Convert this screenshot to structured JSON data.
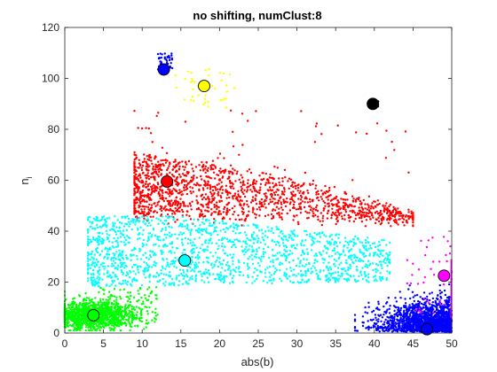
{
  "chart_data": {
    "type": "scatter",
    "title": "no shifting, numClust:8",
    "xlabel": "abs(b)",
    "ylabel": "n",
    "ylabel_subscript": "i",
    "xlim": [
      0,
      50
    ],
    "ylim": [
      0,
      120
    ],
    "xticks": [
      "0",
      "5",
      "10",
      "15",
      "20",
      "25",
      "30",
      "35",
      "40",
      "45",
      "50"
    ],
    "yticks": [
      "0",
      "20",
      "40",
      "60",
      "80",
      "100",
      "120"
    ],
    "grid": false,
    "legend": "none",
    "clusters": [
      {
        "color": "#ff0000",
        "x_range": [
          9,
          45
        ],
        "y_range": [
          42,
          88
        ],
        "centroid": [
          13.2,
          59.5
        ],
        "density": "dense"
      },
      {
        "color": "#00ffff",
        "x_range": [
          3,
          42
        ],
        "y_range": [
          15,
          47
        ],
        "centroid": [
          15.5,
          28.5
        ],
        "density": "dense"
      },
      {
        "color": "#00ff00",
        "x_range": [
          0,
          12
        ],
        "y_range": [
          1,
          20
        ],
        "centroid": [
          3.7,
          7.0
        ],
        "density": "very dense"
      },
      {
        "color": "#0000ff",
        "x_range": [
          37.5,
          50
        ],
        "y_range": [
          0,
          20
        ],
        "centroid": [
          46.8,
          1.5
        ],
        "density": "dense"
      },
      {
        "color": "#ff00ff",
        "x_range": [
          44,
          50
        ],
        "y_range": [
          5,
          40
        ],
        "centroid": [
          49.0,
          22.5
        ],
        "density": "sparse"
      },
      {
        "color": "#ffff00",
        "x_range": [
          14,
          22
        ],
        "y_range": [
          88,
          104
        ],
        "centroid": [
          18.0,
          97.0
        ],
        "density": "sparse"
      },
      {
        "color": "#0000ff",
        "x_range": [
          12,
          14
        ],
        "y_range": [
          103,
          110
        ],
        "centroid": [
          12.8,
          103.5
        ],
        "density": "sparse"
      },
      {
        "color": "#000000",
        "x_range": [
          39.5,
          40.5
        ],
        "y_range": [
          89,
          91
        ],
        "centroid": [
          39.8,
          90.0
        ],
        "density": "single"
      }
    ]
  }
}
